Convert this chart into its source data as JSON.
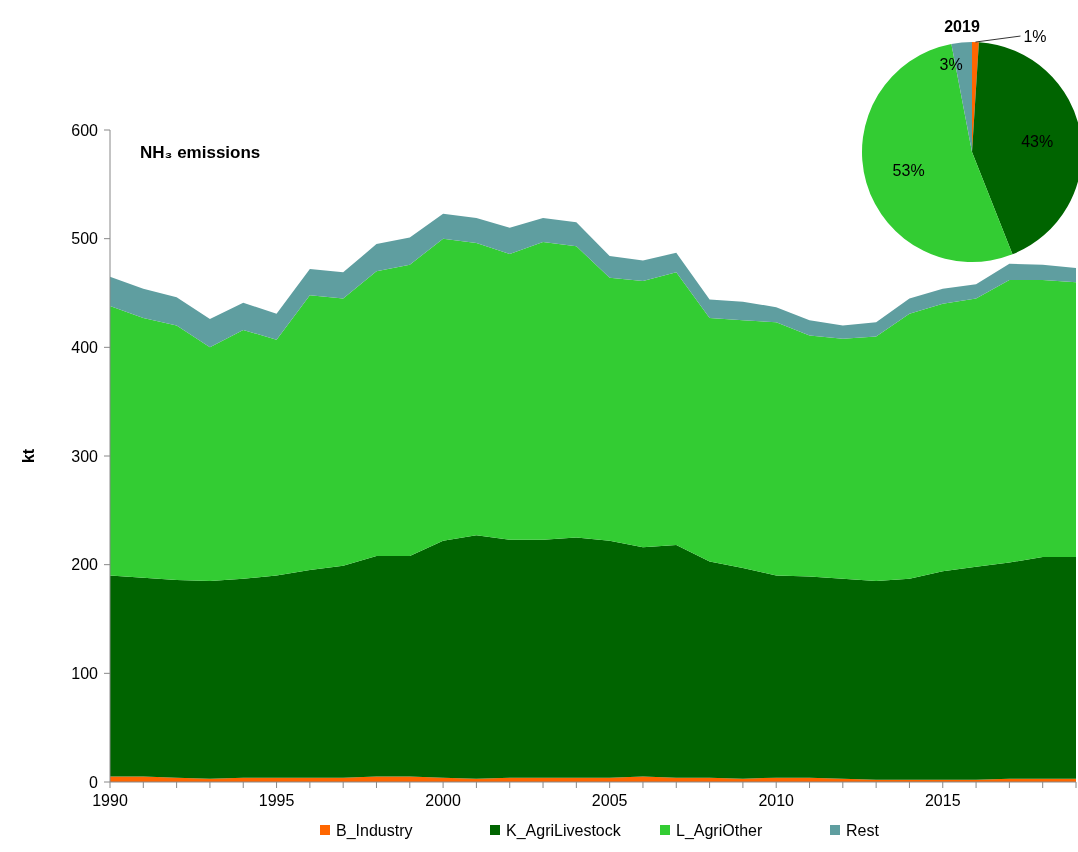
{
  "chart_data": [
    {
      "type": "area",
      "title": "NH₃ emissions",
      "ylabel": "kt",
      "stacked": true,
      "legend": "bottom",
      "x": [
        1990,
        1991,
        1992,
        1993,
        1994,
        1995,
        1996,
        1997,
        1998,
        1999,
        2000,
        2001,
        2002,
        2003,
        2004,
        2005,
        2006,
        2007,
        2008,
        2009,
        2010,
        2011,
        2012,
        2013,
        2014,
        2015,
        2016,
        2017,
        2018,
        2019
      ],
      "xlim": [
        1990,
        2019
      ],
      "xticks": [
        1990,
        {
          "value": 1991,
          "label": null
        },
        {
          "value": 1992,
          "label": null
        },
        {
          "value": 1993,
          "label": null
        },
        {
          "value": 1994,
          "label": null
        },
        1995,
        {
          "value": 1996,
          "label": null
        },
        {
          "value": 1997,
          "label": null
        },
        {
          "value": 1998,
          "label": null
        },
        {
          "value": 1999,
          "label": null
        },
        2000,
        {
          "value": 2001,
          "label": null
        },
        {
          "value": 2002,
          "label": null
        },
        {
          "value": 2003,
          "label": null
        },
        {
          "value": 2004,
          "label": null
        },
        2005,
        {
          "value": 2006,
          "label": null
        },
        {
          "value": 2007,
          "label": null
        },
        {
          "value": 2008,
          "label": null
        },
        {
          "value": 2009,
          "label": null
        },
        2010,
        {
          "value": 2011,
          "label": null
        },
        {
          "value": 2012,
          "label": null
        },
        {
          "value": 2013,
          "label": null
        },
        {
          "value": 2014,
          "label": null
        },
        2015,
        {
          "value": 2016,
          "label": null
        },
        {
          "value": 2017,
          "label": null
        },
        {
          "value": 2018,
          "label": null
        },
        {
          "value": 2019,
          "label": null
        }
      ],
      "ylim": [
        0,
        600
      ],
      "yticks": [
        0,
        100,
        200,
        300,
        400,
        500,
        600
      ],
      "series": [
        {
          "name": "B_Industry",
          "color": "#ff6600",
          "values": [
            5,
            5,
            4,
            3,
            4,
            4,
            4,
            4,
            5,
            5,
            4,
            3,
            4,
            4,
            4,
            4,
            5,
            4,
            4,
            3,
            4,
            4,
            3,
            2,
            2,
            2,
            2,
            3,
            3,
            3
          ]
        },
        {
          "name": "K_AgriLivestock",
          "color": "#006400",
          "values": [
            185,
            183,
            182,
            182,
            183,
            186,
            191,
            195,
            203,
            203,
            218,
            224,
            219,
            219,
            221,
            218,
            211,
            214,
            199,
            194,
            186,
            185,
            184,
            183,
            185,
            192,
            196,
            199,
            204,
            204
          ]
        },
        {
          "name": "L_AgriOther",
          "color": "#33cc33",
          "values": [
            248,
            239,
            234,
            215,
            229,
            217,
            253,
            246,
            262,
            268,
            278,
            269,
            263,
            274,
            268,
            242,
            245,
            251,
            224,
            228,
            233,
            222,
            221,
            225,
            244,
            246,
            247,
            260,
            255,
            253
          ]
        },
        {
          "name": "Rest",
          "color": "#5f9ea0",
          "values": [
            27,
            27,
            26,
            26,
            25,
            24,
            24,
            24,
            25,
            25,
            23,
            23,
            24,
            22,
            22,
            20,
            19,
            18,
            17,
            17,
            14,
            14,
            12,
            13,
            14,
            14,
            13,
            15,
            14,
            13
          ]
        }
      ]
    },
    {
      "type": "pie",
      "title": "2019",
      "categories": [
        null,
        null,
        null,
        null
      ],
      "values": [
        1,
        43,
        53,
        3
      ],
      "colors": [
        "#ff6600",
        "#006400",
        "#33cc33",
        "#5f9ea0"
      ],
      "value_labels": [
        "1%",
        "43%",
        "53%",
        "3%"
      ]
    }
  ]
}
